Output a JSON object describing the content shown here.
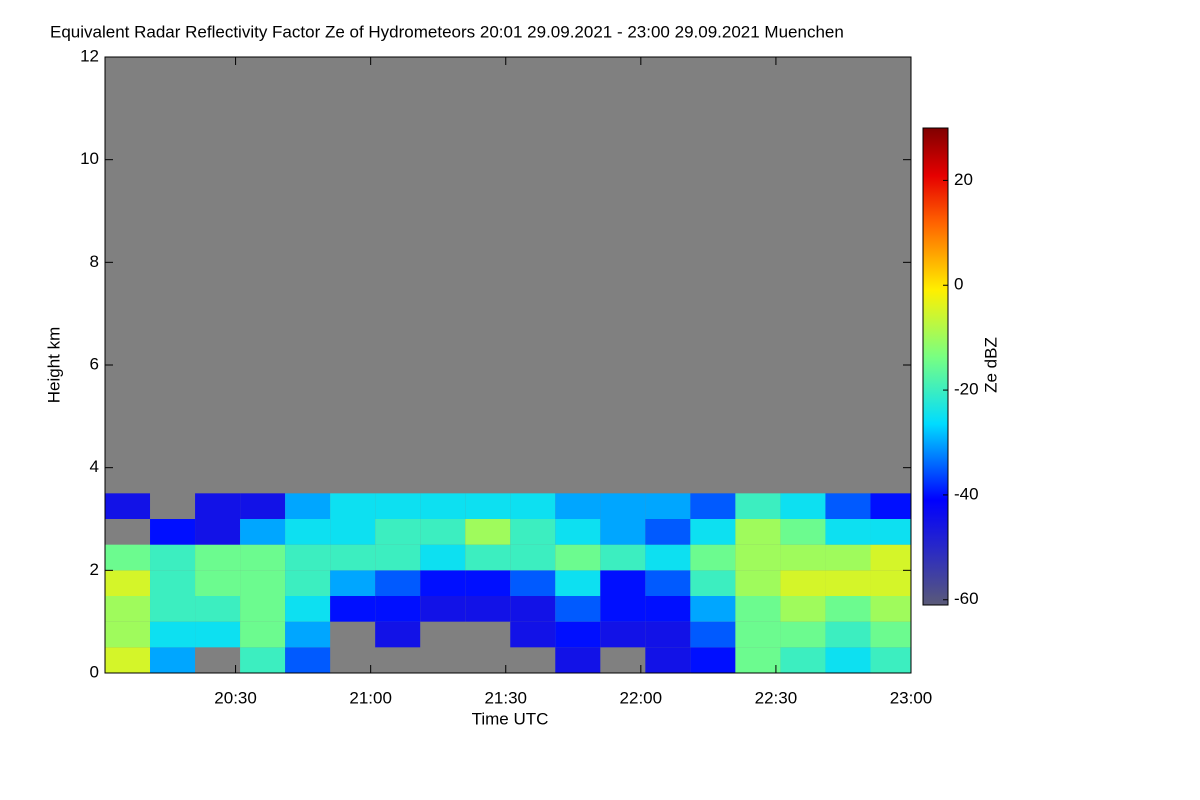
{
  "chart_data": {
    "type": "heatmap",
    "title": "Equivalent Radar Reflectivity Factor Ze of Hydrometeors   20:01 29.09.2021 - 23:00 29.09.2021 Muenchen",
    "xlabel": "Time UTC",
    "ylabel": "Height km",
    "colorbar_label": "Ze dBZ",
    "x": [
      "20:06",
      "20:16",
      "20:26",
      "20:36",
      "20:46",
      "20:56",
      "21:06",
      "21:16",
      "21:26",
      "21:36",
      "21:46",
      "21:56",
      "22:06",
      "22:16",
      "22:26",
      "22:36",
      "22:46",
      "22:56"
    ],
    "y": [
      0.25,
      0.75,
      1.25,
      1.75,
      2.25,
      2.75,
      3.25
    ],
    "z": [
      [
        -5,
        -30,
        null,
        -20,
        -35,
        null,
        null,
        null,
        null,
        null,
        -45,
        null,
        -45,
        -40,
        -15,
        -20,
        -25,
        -20
      ],
      [
        -10,
        -25,
        -25,
        -15,
        -30,
        null,
        -45,
        null,
        null,
        -45,
        -40,
        -45,
        -45,
        -35,
        -15,
        -15,
        -20,
        -15
      ],
      [
        -10,
        -20,
        -20,
        -15,
        -25,
        -40,
        -40,
        -45,
        -45,
        -45,
        -35,
        -40,
        -40,
        -30,
        -15,
        -10,
        -15,
        -10
      ],
      [
        -5,
        -20,
        -15,
        -15,
        -20,
        -30,
        -35,
        -40,
        -40,
        -35,
        -25,
        -40,
        -35,
        -20,
        -10,
        -5,
        -5,
        -5
      ],
      [
        -15,
        -20,
        -15,
        -15,
        -20,
        -20,
        -20,
        -25,
        -20,
        -20,
        -15,
        -20,
        -25,
        -15,
        -10,
        -10,
        -10,
        -5
      ],
      [
        null,
        -40,
        -45,
        -30,
        -25,
        -25,
        -20,
        -20,
        -10,
        -20,
        -25,
        -30,
        -35,
        -25,
        -10,
        -15,
        -25,
        -25
      ],
      [
        -45,
        null,
        -45,
        -45,
        -30,
        -25,
        -25,
        -25,
        -25,
        -25,
        -30,
        -30,
        -30,
        -35,
        -20,
        -25,
        -35,
        -40
      ]
    ],
    "xlim": [
      "20:01",
      "23:00"
    ],
    "xticks": [
      "20:30",
      "21:00",
      "21:30",
      "22:00",
      "22:30",
      "23:00"
    ],
    "ylim": [
      0,
      12
    ],
    "yticks": [
      0,
      2,
      4,
      6,
      8,
      10,
      12
    ],
    "zlim": [
      -61,
      30
    ],
    "zticks": [
      -60,
      -40,
      -20,
      0,
      20
    ],
    "colormap": "jet",
    "missing_color": "#808080"
  }
}
